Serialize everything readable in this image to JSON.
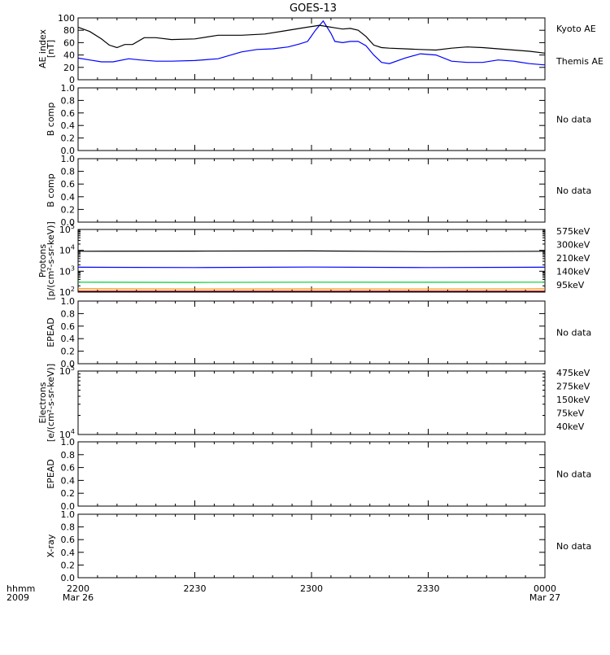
{
  "title": "GOES-13",
  "x_axis": {
    "row_label_1": "hhmm",
    "row_label_2": "2009",
    "ticks": [
      {
        "t": 0,
        "label": "2200",
        "sub": "Mar 26"
      },
      {
        "t": 30,
        "label": "2230",
        "sub": ""
      },
      {
        "t": 60,
        "label": "2300",
        "sub": ""
      },
      {
        "t": 90,
        "label": "2330",
        "sub": ""
      },
      {
        "t": 120,
        "label": "0000",
        "sub": "Mar 27"
      }
    ]
  },
  "no_data_text": "No data",
  "colors": {
    "kyoto": "#0000ff",
    "themis": "#000000",
    "575keV": "#8b0000",
    "300keV": "#ff8c00",
    "210keV": "#00cc33",
    "140keV": "#0000ff",
    "95keV": "#000000",
    "475keV": "#8b0000",
    "275keV": "#ff8c00",
    "150keV": "#00cc33",
    "75keV": "#0000ff",
    "40keV": "#000000"
  },
  "chart_data": [
    {
      "id": "ae",
      "type": "line",
      "ylabel_lines": [
        "AE index",
        "[nT]"
      ],
      "ylim": [
        0,
        100
      ],
      "yticks": [
        "0",
        "20",
        "40",
        "60",
        "80",
        "100"
      ],
      "x_units": "minutes after 2200 UT, 2009 Mar 26",
      "series": [
        {
          "name": "Kyoto AE",
          "color_key": "kyoto",
          "x": [
            0,
            3,
            6,
            9,
            13,
            16,
            20,
            24,
            30,
            36,
            42,
            46,
            50,
            54,
            57,
            59,
            61,
            63,
            65,
            66,
            68,
            70,
            72,
            74,
            76,
            78,
            80,
            84,
            88,
            92,
            96,
            100,
            104,
            108,
            112,
            116,
            120
          ],
          "y": [
            35,
            32,
            29,
            29,
            34,
            32,
            30,
            30,
            31,
            34,
            45,
            49,
            50,
            53,
            58,
            62,
            80,
            95,
            75,
            62,
            60,
            62,
            62,
            55,
            40,
            28,
            26,
            35,
            42,
            40,
            30,
            28,
            28,
            32,
            30,
            26,
            24
          ]
        },
        {
          "name": "Themis AE",
          "color_key": "themis",
          "x": [
            0,
            3,
            6,
            8,
            10,
            12,
            14,
            17,
            20,
            24,
            30,
            36,
            42,
            48,
            53,
            57,
            60,
            62,
            64,
            66,
            68,
            70,
            72,
            74,
            76,
            78,
            80,
            84,
            88,
            92,
            96,
            100,
            104,
            108,
            112,
            116,
            120
          ],
          "y": [
            85,
            78,
            66,
            56,
            52,
            57,
            57,
            68,
            68,
            65,
            66,
            72,
            72,
            74,
            79,
            83,
            86,
            88,
            86,
            84,
            82,
            83,
            80,
            70,
            56,
            52,
            51,
            50,
            49,
            48,
            51,
            53,
            52,
            50,
            48,
            46,
            43
          ]
        }
      ],
      "legend": [
        "Kyoto AE",
        "Themis AE"
      ]
    },
    {
      "id": "bcomp1",
      "type": "line",
      "ylabel_lines": [
        "B comp"
      ],
      "ylim": [
        0,
        1
      ],
      "yticks": [
        "0.0",
        "0.2",
        "0.4",
        "0.6",
        "0.8",
        "1.0"
      ],
      "series": [],
      "status": "No data"
    },
    {
      "id": "bcomp2",
      "type": "line",
      "ylabel_lines": [
        "B comp"
      ],
      "ylim": [
        0,
        1
      ],
      "yticks": [
        "0.0",
        "0.2",
        "0.4",
        "0.6",
        "0.8",
        "1.0"
      ],
      "series": [],
      "status": "No data"
    },
    {
      "id": "protons",
      "type": "line",
      "ylabel_lines": [
        "Protons",
        "[p/(cm²-s-sr-keV)]"
      ],
      "scale": "log",
      "ylim": [
        100,
        100000
      ],
      "yticks": [
        {
          "base": "10",
          "exp": "2",
          "v": 100
        },
        {
          "base": "10",
          "exp": "3",
          "v": 1000
        },
        {
          "base": "10",
          "exp": "4",
          "v": 10000
        },
        {
          "base": "10",
          "exp": "5",
          "v": 100000
        }
      ],
      "series": [
        {
          "name": "575keV",
          "color_key": "575keV",
          "x": [
            0,
            30,
            60,
            90,
            120
          ],
          "y": [
            110,
            110,
            110,
            110,
            110
          ]
        },
        {
          "name": "300keV",
          "color_key": "300keV",
          "x": [
            0,
            30,
            60,
            90,
            120
          ],
          "y": [
            145,
            140,
            142,
            140,
            143
          ]
        },
        {
          "name": "210keV",
          "color_key": "210keV",
          "x": [
            0,
            30,
            60,
            90,
            120
          ],
          "y": [
            300,
            290,
            300,
            295,
            300
          ]
        },
        {
          "name": "140keV",
          "color_key": "140keV",
          "x": [
            0,
            30,
            60,
            90,
            120
          ],
          "y": [
            1550,
            1500,
            1580,
            1500,
            1560
          ]
        },
        {
          "name": "95keV",
          "color_key": "95keV",
          "x": [
            0,
            30,
            60,
            90,
            120
          ],
          "y": [
            9000,
            9200,
            9400,
            8600,
            9000
          ]
        }
      ],
      "legend": [
        "575keV",
        "300keV",
        "210keV",
        "140keV",
        "95keV"
      ]
    },
    {
      "id": "epead1",
      "type": "line",
      "ylabel_lines": [
        "EPEAD"
      ],
      "ylim": [
        0,
        1
      ],
      "yticks": [
        "0.0",
        "0.2",
        "0.4",
        "0.6",
        "0.8",
        "1.0"
      ],
      "series": [],
      "status": "No data"
    },
    {
      "id": "electrons",
      "type": "line",
      "ylabel_lines": [
        "Electrons",
        "[e/(cm²-s-sr-keV)]"
      ],
      "scale": "log",
      "ylim": [
        10000,
        100000
      ],
      "yticks": [
        {
          "base": "10",
          "exp": "4",
          "v": 10000
        },
        {
          "base": "10",
          "exp": "5",
          "v": 100000
        }
      ],
      "series": [],
      "legend": [
        "475keV",
        "275keV",
        "150keV",
        "75keV",
        "40keV"
      ]
    },
    {
      "id": "epead2",
      "type": "line",
      "ylabel_lines": [
        "EPEAD"
      ],
      "ylim": [
        0,
        1
      ],
      "yticks": [
        "0.0",
        "0.2",
        "0.4",
        "0.6",
        "0.8",
        "1.0"
      ],
      "series": [],
      "status": "No data"
    },
    {
      "id": "xray",
      "type": "line",
      "ylabel_lines": [
        "X-ray"
      ],
      "ylim": [
        0,
        1
      ],
      "yticks": [
        "0.0",
        "0.2",
        "0.4",
        "0.6",
        "0.8",
        "1.0"
      ],
      "series": [],
      "status": "No data"
    }
  ]
}
